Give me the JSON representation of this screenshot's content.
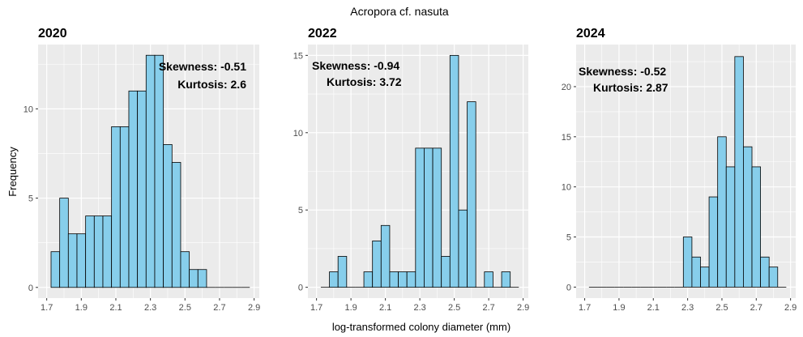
{
  "figure": {
    "title": "Acropora cf. nasuta",
    "xlabel": "log-transformed colony diameter (mm)",
    "ylabel": "Frequency"
  },
  "style": {
    "bar_fill": "#87ceeb",
    "bar_stroke": "#000000",
    "panel_background": "#ebebeb",
    "grid_color": "#ffffff"
  },
  "chart_data": [
    {
      "type": "bar",
      "title": "2020",
      "bin_width": 0.05,
      "bin_starts": [
        1.725,
        1.775,
        1.825,
        1.875,
        1.925,
        1.975,
        2.025,
        2.075,
        2.125,
        2.175,
        2.225,
        2.275,
        2.325,
        2.375,
        2.425,
        2.475,
        2.525,
        2.575,
        2.625,
        2.675,
        2.725,
        2.775,
        2.825
      ],
      "values": [
        2,
        5,
        3,
        3,
        4,
        4,
        4,
        9,
        9,
        11,
        11,
        13,
        13,
        8,
        7,
        2,
        1,
        1,
        0,
        0,
        0,
        0,
        0
      ],
      "xlim": [
        1.65,
        2.93
      ],
      "ylim": [
        -0.6,
        13.6
      ],
      "x_ticks": [
        1.7,
        1.9,
        2.1,
        2.3,
        2.5,
        2.7,
        2.9
      ],
      "x_tick_labels": [
        "1.7",
        "1.9",
        "2.1",
        "2.3",
        "2.5",
        "2.7",
        "2.9"
      ],
      "x_ticks_minor": [
        1.8,
        2.0,
        2.2,
        2.4,
        2.6,
        2.8
      ],
      "y_ticks": [
        0,
        5,
        10
      ],
      "y_tick_labels": [
        "0",
        "5",
        "10"
      ],
      "y_ticks_minor": [
        2.5,
        7.5,
        12.5
      ],
      "annotations": [
        {
          "text": "Skewness: -0.51",
          "align": "right"
        },
        {
          "text": "Kurtosis: 2.6",
          "align": "right"
        }
      ]
    },
    {
      "type": "bar",
      "title": "2022",
      "bin_width": 0.05,
      "bin_starts": [
        1.725,
        1.775,
        1.825,
        1.875,
        1.925,
        1.975,
        2.025,
        2.075,
        2.125,
        2.175,
        2.225,
        2.275,
        2.325,
        2.375,
        2.425,
        2.475,
        2.525,
        2.575,
        2.625,
        2.675,
        2.725,
        2.775,
        2.825
      ],
      "values": [
        0,
        1,
        2,
        0,
        0,
        1,
        3,
        4,
        1,
        1,
        1,
        9,
        9,
        9,
        2,
        15,
        5,
        12,
        0,
        1,
        0,
        1,
        0
      ],
      "xlim": [
        1.65,
        2.93
      ],
      "ylim": [
        -0.7,
        15.7
      ],
      "x_ticks": [
        1.7,
        1.9,
        2.1,
        2.3,
        2.5,
        2.7,
        2.9
      ],
      "x_tick_labels": [
        "1.7",
        "1.9",
        "2.1",
        "2.3",
        "2.5",
        "2.7",
        "2.9"
      ],
      "x_ticks_minor": [
        1.8,
        2.0,
        2.2,
        2.4,
        2.6,
        2.8
      ],
      "y_ticks": [
        0,
        5,
        10,
        15
      ],
      "y_tick_labels": [
        "0",
        "5",
        "10",
        "15"
      ],
      "y_ticks_minor": [
        2.5,
        7.5,
        12.5
      ],
      "annotations": [
        {
          "text": "Skewness: -0.94",
          "align": "left"
        },
        {
          "text": "Kurtosis: 3.72",
          "align": "left"
        }
      ]
    },
    {
      "type": "bar",
      "title": "2024",
      "bin_width": 0.05,
      "bin_starts": [
        1.725,
        1.775,
        1.825,
        1.875,
        1.925,
        1.975,
        2.025,
        2.075,
        2.125,
        2.175,
        2.225,
        2.275,
        2.325,
        2.375,
        2.425,
        2.475,
        2.525,
        2.575,
        2.625,
        2.675,
        2.725,
        2.775,
        2.825
      ],
      "values": [
        0,
        0,
        0,
        0,
        0,
        0,
        0,
        0,
        0,
        0,
        0,
        5,
        3,
        2,
        9,
        15,
        12,
        23,
        14,
        12,
        3,
        2,
        0
      ],
      "xlim": [
        1.65,
        2.93
      ],
      "ylim": [
        -1.1,
        24.2
      ],
      "x_ticks": [
        1.7,
        1.9,
        2.1,
        2.3,
        2.5,
        2.7,
        2.9
      ],
      "x_tick_labels": [
        "1.7",
        "1.9",
        "2.1",
        "2.3",
        "2.5",
        "2.7",
        "2.9"
      ],
      "x_ticks_minor": [
        1.8,
        2.0,
        2.2,
        2.4,
        2.6,
        2.8
      ],
      "y_ticks": [
        0,
        5,
        10,
        15,
        20
      ],
      "y_tick_labels": [
        "0",
        "5",
        "10",
        "15",
        "20"
      ],
      "y_ticks_minor": [
        2.5,
        7.5,
        12.5,
        17.5,
        22.5
      ],
      "annotations": [
        {
          "text": "Skewness: -0.52",
          "align": "left"
        },
        {
          "text": "Kurtosis: 2.87",
          "align": "left"
        }
      ]
    }
  ]
}
